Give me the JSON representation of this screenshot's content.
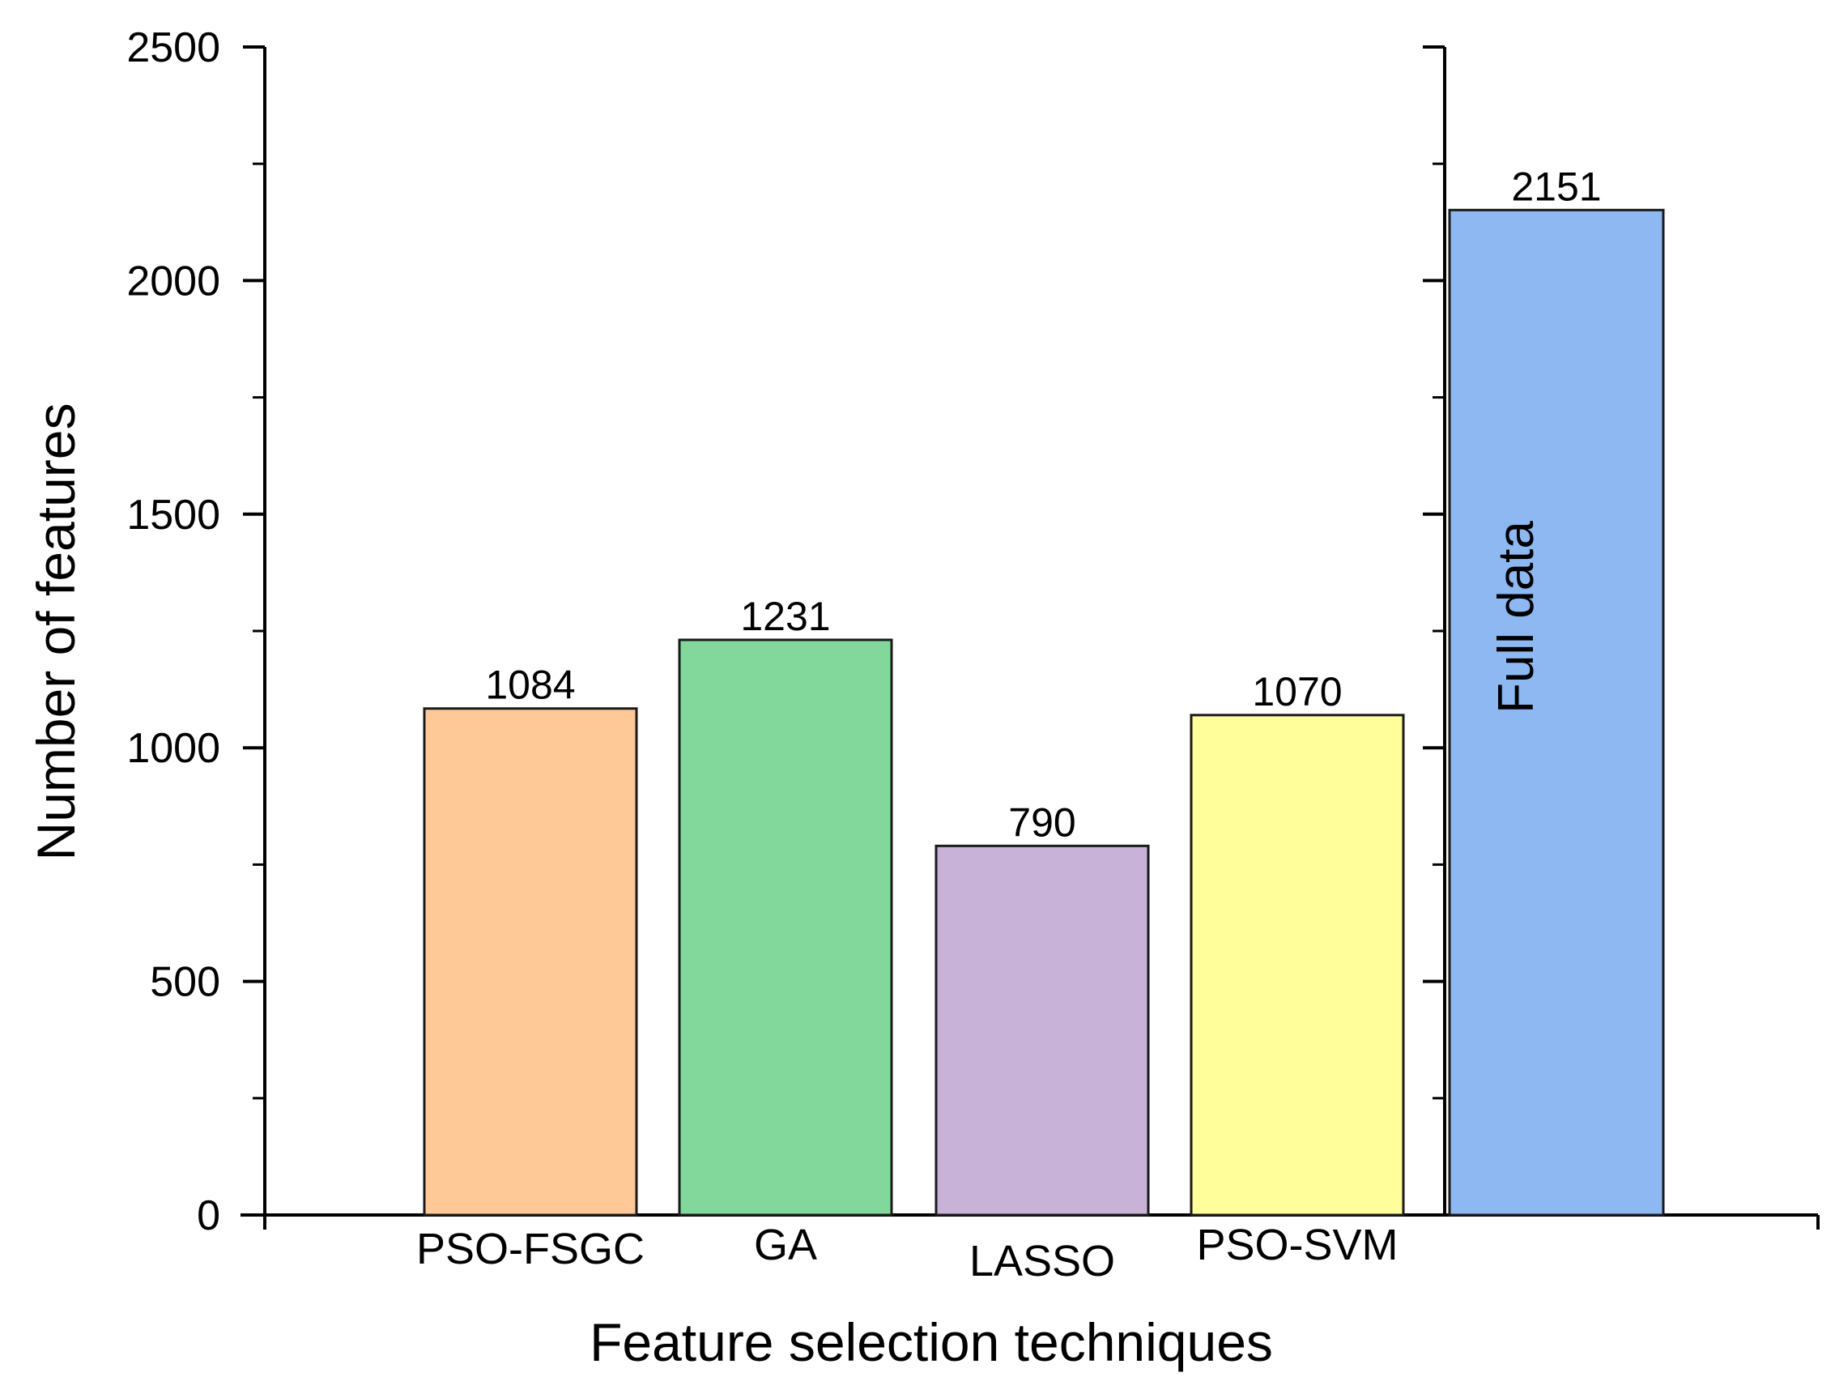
{
  "chart_data": {
    "type": "bar",
    "title": "",
    "xlabel": "Feature selection techniques",
    "ylabel": "Number of features",
    "ylim": [
      0,
      2500
    ],
    "yticks": [
      0,
      500,
      1000,
      1500,
      2000,
      2500
    ],
    "grid": false,
    "bars": [
      {
        "category": "PSO-FSGC",
        "value": 1084,
        "label": "1084",
        "color": "#FFC896"
      },
      {
        "category": "GA",
        "value": 1231,
        "label": "1231",
        "color": "#82D89A"
      },
      {
        "category": "LASSO",
        "value": 790,
        "label": "790",
        "color": "#C8B2D8"
      },
      {
        "category": "PSO-SVM",
        "value": 1070,
        "label": "1070",
        "color": "#FFFE9A"
      }
    ],
    "reference_bar": {
      "category": "Full data",
      "value": 2151,
      "label": "2151",
      "inner_text": "Full data",
      "color": "#8DB8F2"
    }
  }
}
